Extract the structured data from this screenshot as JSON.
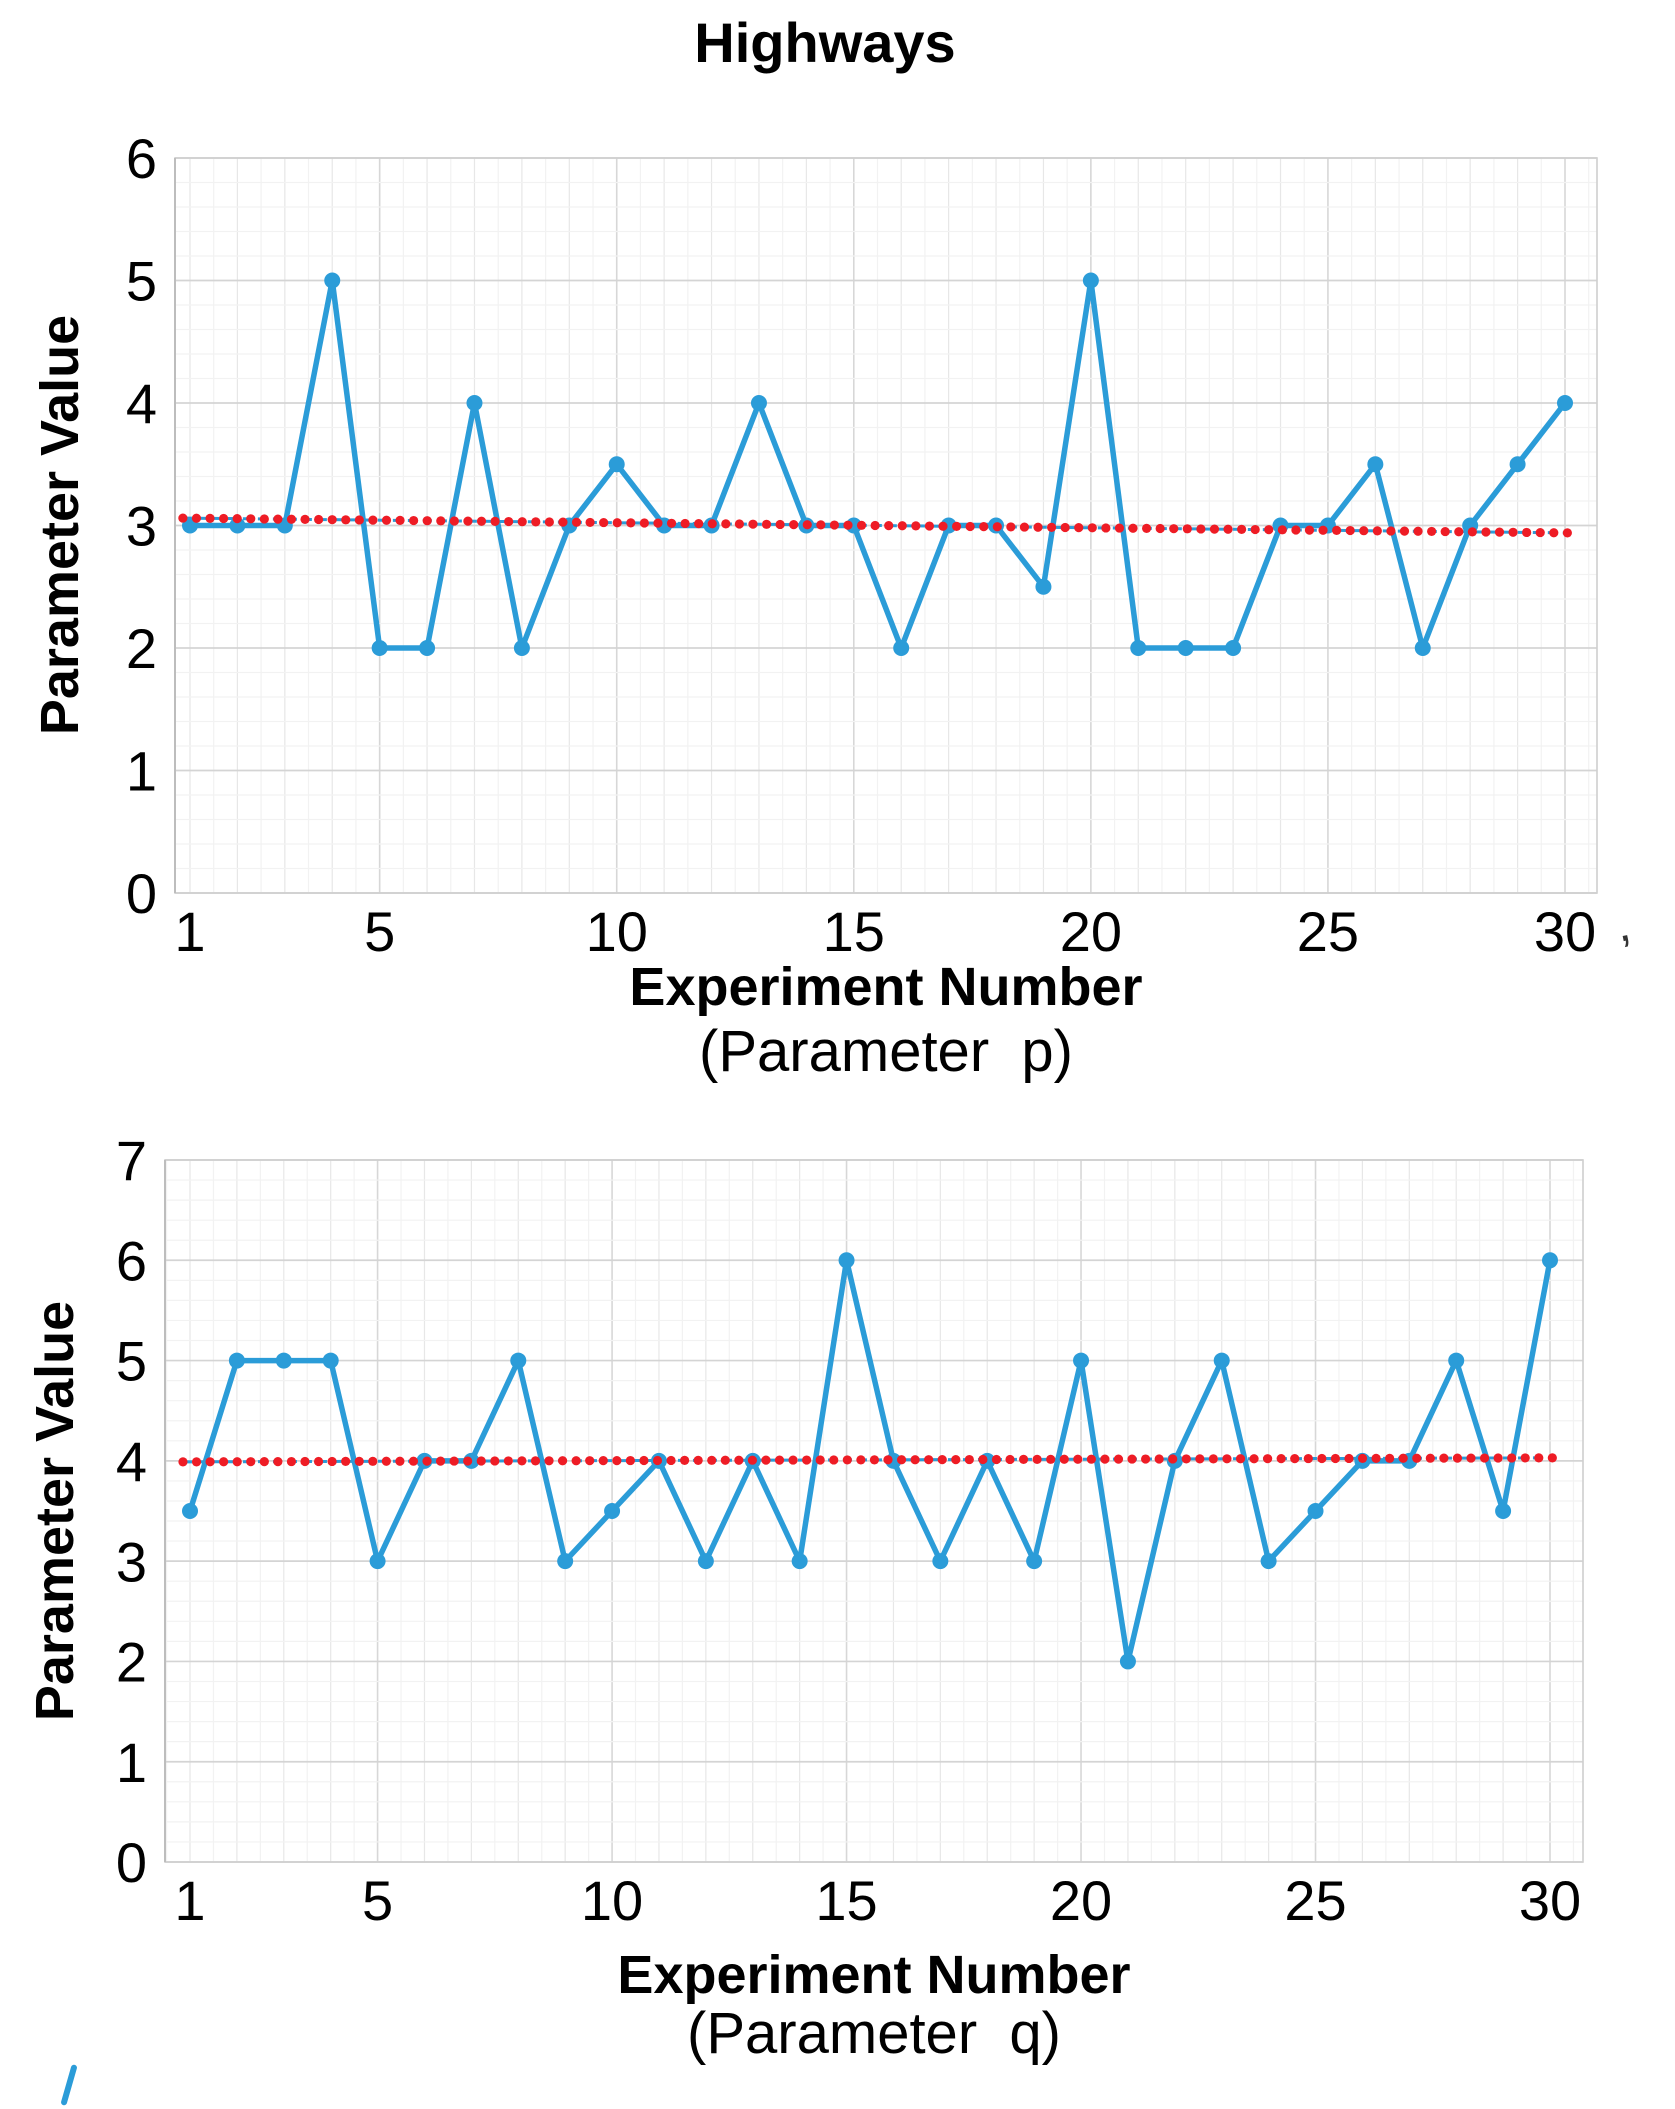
{
  "page": {
    "background_color": "#ffffff",
    "text_color": "#000000"
  },
  "artifacts": {
    "comma_mark": ",",
    "blue_corner_mark": "stray-blue-stroke"
  },
  "chart_data": [
    {
      "type": "line",
      "title": "Highways",
      "ylabel": "Parameter Value",
      "xlabel": "Experiment Number",
      "sublabel": "(Parameter  p)",
      "x": [
        1,
        2,
        3,
        4,
        5,
        6,
        7,
        8,
        9,
        10,
        11,
        12,
        13,
        14,
        15,
        16,
        17,
        18,
        19,
        20,
        21,
        22,
        23,
        24,
        25,
        26,
        27,
        28,
        29,
        30
      ],
      "series": [
        {
          "name": "Parameter p",
          "color": "#2B9CD8",
          "marker": "circle",
          "values": [
            3,
            3,
            3,
            5,
            2,
            2,
            4,
            2,
            3,
            3.5,
            3,
            3,
            4,
            3,
            3,
            2,
            3,
            3,
            2.5,
            5,
            2,
            2,
            2,
            3,
            3,
            3.5,
            2,
            3,
            3.5,
            4
          ]
        }
      ],
      "trendline": {
        "style": "dotted",
        "dot_color": "#EE1C25",
        "dash_color": "#2B9CD8",
        "start_value": 3.06,
        "end_value": 2.94
      },
      "ylim": [
        0,
        6
      ],
      "yticks": [
        0,
        1,
        2,
        3,
        4,
        5,
        6
      ],
      "xticks": [
        1,
        5,
        10,
        15,
        20,
        25,
        30
      ],
      "grid": true,
      "legend_position": "none"
    },
    {
      "type": "line",
      "title": "",
      "ylabel": "Parameter Value",
      "xlabel": "Experiment Number",
      "sublabel": "(Parameter  q)",
      "x": [
        1,
        2,
        3,
        4,
        5,
        6,
        7,
        8,
        9,
        10,
        11,
        12,
        13,
        14,
        15,
        16,
        17,
        18,
        19,
        20,
        21,
        22,
        23,
        24,
        25,
        26,
        27,
        28,
        29,
        30
      ],
      "series": [
        {
          "name": "Parameter q",
          "color": "#2B9CD8",
          "marker": "circle",
          "values": [
            3.5,
            5,
            5,
            5,
            3,
            4,
            4,
            5,
            3,
            3.5,
            4,
            3,
            4,
            3,
            6,
            4,
            3,
            4,
            3,
            5,
            2,
            4,
            5,
            3,
            3.5,
            4,
            4,
            5,
            3.5,
            6
          ]
        }
      ],
      "trendline": {
        "style": "dotted",
        "dot_color": "#EE1C25",
        "dash_color": "#2B9CD8",
        "start_value": 3.99,
        "end_value": 4.03
      },
      "ylim": [
        0,
        7
      ],
      "yticks": [
        0,
        1,
        2,
        3,
        4,
        5,
        6,
        7
      ],
      "xticks": [
        1,
        5,
        10,
        15,
        20,
        25,
        30
      ],
      "grid": true,
      "legend_position": "none"
    }
  ]
}
